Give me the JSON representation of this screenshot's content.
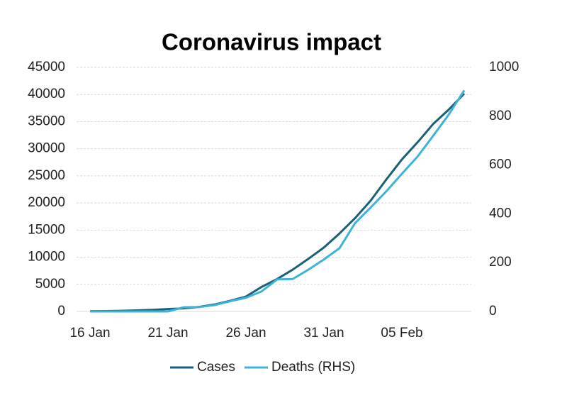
{
  "chart_data": {
    "type": "line",
    "title": "Coronavirus impact",
    "categories": [
      "16 Jan",
      null,
      null,
      null,
      null,
      "21 Jan",
      null,
      null,
      null,
      null,
      "26 Jan",
      null,
      null,
      null,
      null,
      "31 Jan",
      null,
      null,
      null,
      null,
      "05 Feb",
      null,
      null,
      null,
      null
    ],
    "series": [
      {
        "name": "Cases",
        "color": "#1a6079",
        "values": [
          45,
          62,
          121,
          198,
          291,
          440,
          571,
          830,
          1287,
          1975,
          2744,
          4515,
          5974,
          7711,
          9692,
          11791,
          14380,
          17205,
          20438,
          24324,
          28018,
          31161,
          34546,
          37198,
          40171
        ]
      },
      {
        "name": "Deaths (RHS)",
        "color": "#3db3d8",
        "axis": "y2",
        "values": [
          0,
          0,
          0,
          0,
          0,
          0,
          17,
          18,
          26,
          42,
          56,
          82,
          131,
          133,
          171,
          213,
          259,
          362,
          426,
          492,
          564,
          634,
          719,
          806,
          906
        ]
      }
    ],
    "ylim": [
      0,
      45000
    ],
    "yticks": [
      0,
      5000,
      10000,
      15000,
      20000,
      25000,
      30000,
      35000,
      40000,
      45000
    ],
    "y2lim": [
      0,
      1000
    ],
    "y2ticks": [
      0,
      200,
      400,
      600,
      800,
      1000
    ],
    "grid": true,
    "legend": "bottom"
  }
}
